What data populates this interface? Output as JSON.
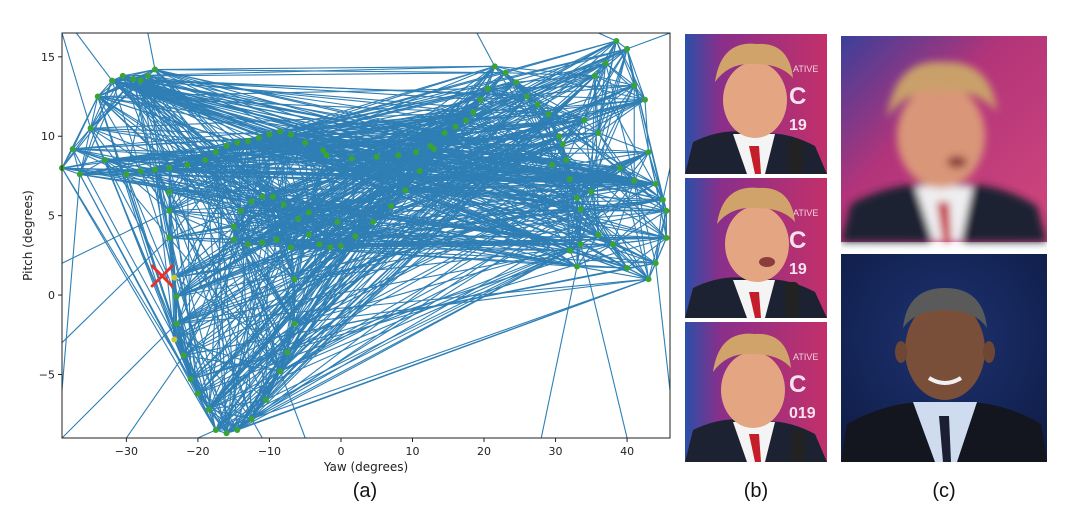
{
  "captions": {
    "a": "(a)",
    "b": "(b)",
    "c": "(c)"
  },
  "chart_data": {
    "type": "scatter",
    "xlabel": "Yaw (degrees)",
    "ylabel": "Pitch (degrees)",
    "xlim": [
      -39,
      46
    ],
    "ylim": [
      -9,
      16.5
    ],
    "xticks": [
      -30,
      -20,
      -10,
      0,
      10,
      20,
      30,
      40
    ],
    "yticks": [
      -5,
      0,
      5,
      10,
      15
    ],
    "grid": false,
    "colors": {
      "edges": "#2f7fb5",
      "points": "#3aa335",
      "highlight": "#c9c832",
      "query": "#e8302a"
    },
    "query_point": {
      "x": -25,
      "y": 1.2,
      "marker": "x"
    },
    "highlighted_points": [
      [
        -32.5,
        8.0
      ],
      [
        -23.3,
        1.1
      ],
      [
        -23.3,
        -2.8
      ]
    ],
    "points": [
      [
        -39,
        8.0
      ],
      [
        -37.5,
        9.2
      ],
      [
        -36.5,
        7.6
      ],
      [
        -35,
        10.5
      ],
      [
        -34,
        12.5
      ],
      [
        -33,
        8.5
      ],
      [
        -32,
        13.5
      ],
      [
        -30.5,
        13.8
      ],
      [
        -29,
        13.6
      ],
      [
        -28,
        13.5
      ],
      [
        -27,
        13.8
      ],
      [
        -26,
        14.2
      ],
      [
        -30,
        7.6
      ],
      [
        -28,
        7.8
      ],
      [
        -26,
        7.9
      ],
      [
        -24,
        8.0
      ],
      [
        -21.5,
        8.2
      ],
      [
        -19,
        8.5
      ],
      [
        -17.5,
        9.0
      ],
      [
        -16,
        9.4
      ],
      [
        -14.5,
        9.6
      ],
      [
        -13,
        9.7
      ],
      [
        -11.5,
        9.9
      ],
      [
        -10,
        10.1
      ],
      [
        -8.5,
        10.3
      ],
      [
        -7,
        10.1
      ],
      [
        -5,
        9.6
      ],
      [
        -2,
        8.8
      ],
      [
        1.5,
        8.6
      ],
      [
        5,
        8.7
      ],
      [
        8,
        8.8
      ],
      [
        10.5,
        9.0
      ],
      [
        12.5,
        9.4
      ],
      [
        14.5,
        10.2
      ],
      [
        16,
        10.6
      ],
      [
        17.5,
        11.0
      ],
      [
        18.5,
        11.5
      ],
      [
        19.5,
        12.3
      ],
      [
        20.5,
        13.0
      ],
      [
        21.5,
        14.4
      ],
      [
        23,
        14.0
      ],
      [
        24.5,
        13.4
      ],
      [
        26,
        12.5
      ],
      [
        27.5,
        12.0
      ],
      [
        29,
        11.4
      ],
      [
        30.5,
        10.0
      ],
      [
        31.5,
        8.5
      ],
      [
        32,
        7.3
      ],
      [
        33,
        6.1
      ],
      [
        33.5,
        5.4
      ],
      [
        35,
        6.5
      ],
      [
        35.5,
        13.8
      ],
      [
        37,
        14.6
      ],
      [
        38.5,
        16.0
      ],
      [
        40,
        15.5
      ],
      [
        41,
        13.2
      ],
      [
        42.5,
        12.3
      ],
      [
        43,
        9.0
      ],
      [
        44,
        7.0
      ],
      [
        45,
        6.0
      ],
      [
        45.5,
        5.3
      ],
      [
        45.5,
        3.6
      ],
      [
        44,
        2.0
      ],
      [
        43,
        1.0
      ],
      [
        40,
        1.7
      ],
      [
        38,
        3.2
      ],
      [
        36,
        3.8
      ],
      [
        33.5,
        3.2
      ],
      [
        32,
        2.8
      ],
      [
        33,
        1.8
      ],
      [
        -24,
        6.5
      ],
      [
        -24,
        5.3
      ],
      [
        -24,
        3.6
      ],
      [
        -23.3,
        1.1
      ],
      [
        -23,
        -0.1
      ],
      [
        -23,
        -1.8
      ],
      [
        -23.3,
        -2.8
      ],
      [
        -22,
        -3.8
      ],
      [
        -21,
        -5.3
      ],
      [
        -20,
        -6.2
      ],
      [
        -18.5,
        -7.2
      ],
      [
        -17.5,
        -8.5
      ],
      [
        -16,
        -8.7
      ],
      [
        -14.5,
        -8.5
      ],
      [
        -12.5,
        -7.8
      ],
      [
        -10.5,
        -6.6
      ],
      [
        -8.5,
        -4.8
      ],
      [
        -7.5,
        -3.6
      ],
      [
        -6.5,
        -1.8
      ],
      [
        -6.5,
        1.0
      ],
      [
        -7,
        3.0
      ],
      [
        -9,
        3.5
      ],
      [
        -11,
        3.3
      ],
      [
        -13,
        3.2
      ],
      [
        -15,
        3.5
      ],
      [
        -15,
        4.3
      ],
      [
        -14,
        5.3
      ],
      [
        -12.5,
        5.9
      ],
      [
        -11,
        6.2
      ],
      [
        -9.5,
        6.2
      ],
      [
        -8,
        5.7
      ],
      [
        -6,
        4.8
      ],
      [
        -4.5,
        3.8
      ],
      [
        -3,
        3.2
      ],
      [
        -1.5,
        3.0
      ],
      [
        0,
        3.1
      ],
      [
        2,
        3.7
      ],
      [
        4.5,
        4.6
      ],
      [
        7,
        5.6
      ],
      [
        9,
        6.6
      ],
      [
        11,
        7.8
      ],
      [
        13,
        9.2
      ],
      [
        -2.5,
        9.1
      ],
      [
        -4.5,
        5.2
      ],
      [
        -0.5,
        4.6
      ],
      [
        29.5,
        8.2
      ],
      [
        31,
        9.5
      ],
      [
        34,
        11.0
      ],
      [
        36,
        10.2
      ],
      [
        39,
        8.0
      ],
      [
        41,
        7.2
      ]
    ]
  },
  "panel_b": {
    "alt": "Three stacked talking-head video frames of a man in a suit with a red tie against a magenta and blue stage backdrop with a microphone",
    "colors": {
      "backdrop": "#b5285e",
      "blue": "#2a4fa8",
      "hair": "#d0a36a",
      "skin": "#e3a582",
      "suit": "#1d2233",
      "shirt": "#f4f4f4",
      "tie": "#c41e2a"
    }
  },
  "panel_c": {
    "top_alt": "Blurred synthesized talking-head frame of the same man on a magenta background",
    "bottom_alt": "Talking-head frame of a different man in a dark suit and dark tie against a dark blue background",
    "colors": {
      "backdrop_top": "#c2427a",
      "backdrop_bottom": "#14245a",
      "skin_dark": "#7a4f3a",
      "hair_grey": "#5a5a5a",
      "shirt_blue": "#cfdcf0"
    }
  }
}
